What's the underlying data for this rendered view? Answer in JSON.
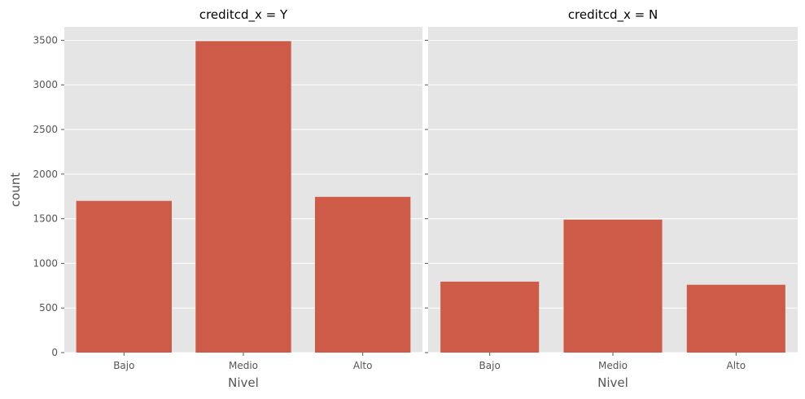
{
  "chart_data": {
    "type": "bar",
    "panels": [
      {
        "title": "creditcd_x = Y",
        "categories": [
          "Bajo",
          "Medio",
          "Alto"
        ],
        "values": [
          1700,
          3490,
          1745
        ]
      },
      {
        "title": "creditcd_x = N",
        "categories": [
          "Bajo",
          "Medio",
          "Alto"
        ],
        "values": [
          795,
          1490,
          760
        ]
      }
    ],
    "xlabel": "Nivel",
    "ylabel": "count",
    "ylim": [
      0,
      3650
    ],
    "yticks": [
      0,
      500,
      1000,
      1500,
      2000,
      2500,
      3000,
      3500
    ],
    "grid": true,
    "colors": {
      "bar": "#cd5b48",
      "panel_background": "#e5e5e5",
      "grid": "#ffffff"
    }
  }
}
